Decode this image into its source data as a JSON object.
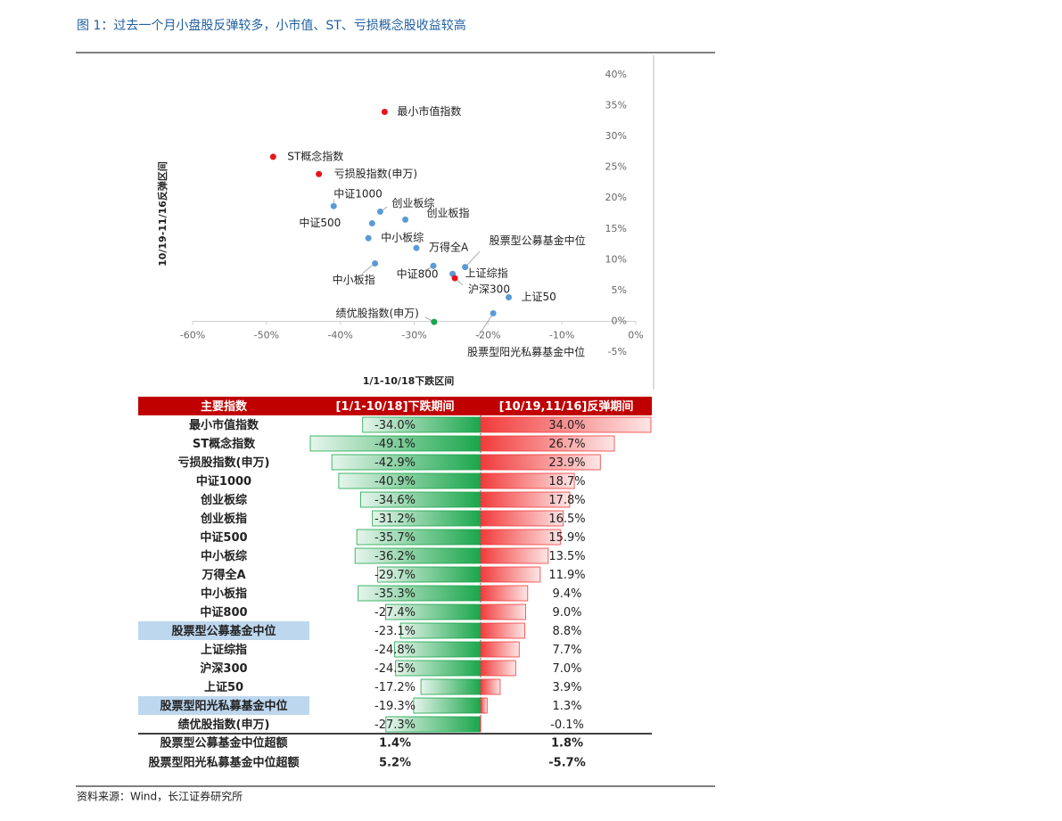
{
  "title": "图 1：过去一个月小盘股反弹较多，小市值、ST、亏损概念股收益较高",
  "chart_data": {
    "type": "scatter",
    "x_label": "1/1-10/18下跌区间",
    "y_label": "10/19-11/16反弹区间",
    "point_labels": [
      "最小市值指数",
      "ST概念指数",
      "亏损股指数(申万)",
      "中证1000",
      "创业板综",
      "创业板指",
      "中证500",
      "中小板综",
      "万得全A",
      "中小板指",
      "中证800",
      "股票型公募基金中位",
      "上证综指",
      "沪深300",
      "上证50",
      "股票型阳光私募基金中位",
      "绩优股指数(申万)"
    ],
    "x": [
      -34.0,
      -49.1,
      -42.9,
      -40.9,
      -34.6,
      -31.2,
      -35.7,
      -36.2,
      -29.7,
      -35.3,
      -27.4,
      -23.1,
      -24.8,
      -24.5,
      -17.2,
      -19.3,
      -27.3
    ],
    "values": [
      34.0,
      26.7,
      23.9,
      18.7,
      17.8,
      16.5,
      15.9,
      13.5,
      11.9,
      9.4,
      9.0,
      8.8,
      7.7,
      7.0,
      3.9,
      1.3,
      -0.1
    ],
    "colors": [
      "#e8141b",
      "#e8141b",
      "#e8141b",
      "#5b9bd5",
      "#5b9bd5",
      "#5b9bd5",
      "#5b9bd5",
      "#5b9bd5",
      "#5b9bd5",
      "#5b9bd5",
      "#5b9bd5",
      "#5b9bd5",
      "#5b9bd5",
      "#e8141b",
      "#5b9bd5",
      "#5b9bd5",
      "#1aa64b"
    ],
    "xlim": [
      -60,
      0
    ],
    "ylim": [
      -5,
      40
    ],
    "xticks": [
      {
        "value": -60,
        "label": "-60%"
      },
      {
        "value": -50,
        "label": "-50%"
      },
      {
        "value": -40,
        "label": "-40%"
      },
      {
        "value": -30,
        "label": "-30%"
      },
      {
        "value": -20,
        "label": "-20%"
      },
      {
        "value": -10,
        "label": "-10%"
      },
      {
        "value": 0,
        "label": "0%"
      }
    ],
    "yticks": [
      {
        "value": -5,
        "label": "-5%"
      },
      {
        "value": 0,
        "label": "0%"
      },
      {
        "value": 5,
        "label": "5%"
      },
      {
        "value": 10,
        "label": "10%"
      },
      {
        "value": 15,
        "label": "15%"
      },
      {
        "value": 20,
        "label": "20%"
      },
      {
        "value": 25,
        "label": "25%"
      },
      {
        "value": 30,
        "label": "30%"
      },
      {
        "value": 35,
        "label": "35%"
      },
      {
        "value": 40,
        "label": "40%"
      }
    ]
  },
  "table": {
    "header": [
      "主要指数",
      "[1/1-10/18]下跌期间",
      "[10/19,11/16]反弹期间"
    ],
    "rows": [
      {
        "name": "最小市值指数",
        "down": {
          "value": -34.0,
          "label": "-34.0%"
        },
        "up": {
          "value": 34.0,
          "label": "34.0%"
        }
      },
      {
        "name": "ST概念指数",
        "down": {
          "value": -49.1,
          "label": "-49.1%"
        },
        "up": {
          "value": 26.7,
          "label": "26.7%"
        }
      },
      {
        "name": "亏损股指数(申万)",
        "down": {
          "value": -42.9,
          "label": "-42.9%"
        },
        "up": {
          "value": 23.9,
          "label": "23.9%"
        }
      },
      {
        "name": "中证1000",
        "down": {
          "value": -40.9,
          "label": "-40.9%"
        },
        "up": {
          "value": 18.7,
          "label": "18.7%"
        }
      },
      {
        "name": "创业板综",
        "down": {
          "value": -34.6,
          "label": "-34.6%"
        },
        "up": {
          "value": 17.8,
          "label": "17.8%"
        }
      },
      {
        "name": "创业板指",
        "down": {
          "value": -31.2,
          "label": "-31.2%"
        },
        "up": {
          "value": 16.5,
          "label": "16.5%"
        }
      },
      {
        "name": "中证500",
        "down": {
          "value": -35.7,
          "label": "-35.7%"
        },
        "up": {
          "value": 15.9,
          "label": "15.9%"
        }
      },
      {
        "name": "中小板综",
        "down": {
          "value": -36.2,
          "label": "-36.2%"
        },
        "up": {
          "value": 13.5,
          "label": "13.5%"
        }
      },
      {
        "name": "万得全A",
        "down": {
          "value": -29.7,
          "label": "-29.7%"
        },
        "up": {
          "value": 11.9,
          "label": "11.9%"
        }
      },
      {
        "name": "中小板指",
        "down": {
          "value": -35.3,
          "label": "-35.3%"
        },
        "up": {
          "value": 9.4,
          "label": "9.4%"
        }
      },
      {
        "name": "中证800",
        "down": {
          "value": -27.4,
          "label": "-27.4%"
        },
        "up": {
          "value": 9.0,
          "label": "9.0%"
        }
      },
      {
        "name": "股票型公募基金中位",
        "down": {
          "value": -23.1,
          "label": "-23.1%"
        },
        "up": {
          "value": 8.8,
          "label": "8.8%"
        },
        "highlight": true
      },
      {
        "name": "上证综指",
        "down": {
          "value": -24.8,
          "label": "-24.8%"
        },
        "up": {
          "value": 7.7,
          "label": "7.7%"
        }
      },
      {
        "name": "沪深300",
        "down": {
          "value": -24.5,
          "label": "-24.5%"
        },
        "up": {
          "value": 7.0,
          "label": "7.0%"
        }
      },
      {
        "name": "上证50",
        "down": {
          "value": -17.2,
          "label": "-17.2%"
        },
        "up": {
          "value": 3.9,
          "label": "3.9%"
        }
      },
      {
        "name": "股票型阳光私募基金中位",
        "down": {
          "value": -19.3,
          "label": "-19.3%"
        },
        "up": {
          "value": 1.3,
          "label": "1.3%"
        },
        "highlight": true
      },
      {
        "name": "绩优股指数(申万)",
        "down": {
          "value": -27.3,
          "label": "-27.3%"
        },
        "up": {
          "value": -0.1,
          "label": "-0.1%"
        }
      }
    ],
    "summary_rows": [
      {
        "name": "股票型公募基金中位超额",
        "down": "1.4%",
        "up": "1.8%"
      },
      {
        "name": "股票型阳光私募基金中位超额",
        "down": "5.2%",
        "up": "-5.7%"
      }
    ]
  },
  "source": "资料来源：Wind，长江证券研究所"
}
